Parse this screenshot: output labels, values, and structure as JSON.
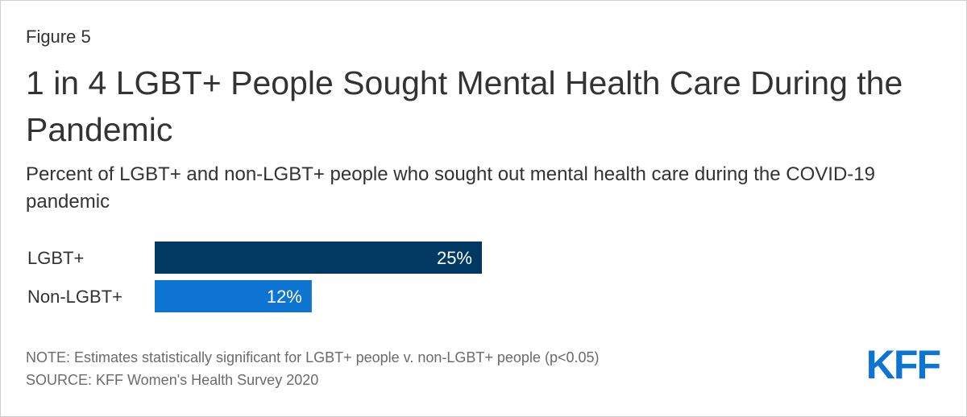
{
  "figure_label": "Figure 5",
  "title": "1 in 4 LGBT+ People Sought Mental Health Care During the Pandemic",
  "subtitle": "Percent of LGBT+ and non-LGBT+ people who sought out mental health care during the COVID-19 pandemic",
  "footer": {
    "note": "NOTE: Estimates statistically significant for LGBT+ people v. non-LGBT+ people (p<0.05)",
    "source": "SOURCE: KFF Women's Health Survey 2020"
  },
  "logo_text": "KFF",
  "colors": {
    "lgbt": "#003a63",
    "non_lgbt": "#0d74d1",
    "logo": "#0d74d1"
  },
  "chart_data": {
    "type": "bar",
    "orientation": "horizontal",
    "categories": [
      "LGBT+",
      "Non-LGBT+"
    ],
    "values": [
      25,
      12
    ],
    "data_labels": [
      "25%",
      "12%"
    ],
    "title": "1 in 4 LGBT+ People Sought Mental Health Care During the Pandemic",
    "xlabel": "",
    "ylabel": "",
    "grid": false
  }
}
